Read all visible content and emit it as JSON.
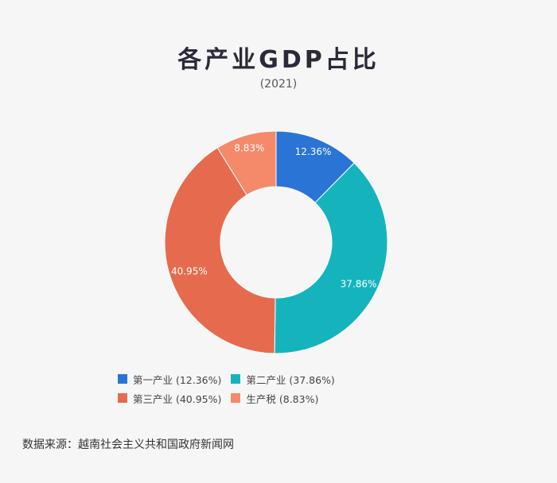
{
  "title": "各产业GDP占比",
  "subtitle": "(2021)",
  "source": "数据来源：越南社会主义共和国政府新闻网",
  "chart_data": {
    "type": "pie",
    "donut": true,
    "categories": [
      "第一产业",
      "第二产业",
      "第三产业",
      "生产税"
    ],
    "values": [
      12.36,
      37.86,
      40.95,
      8.83
    ],
    "data_labels": [
      "12.36%",
      "37.86%",
      "40.95%",
      "8.83%"
    ],
    "colors": [
      "#2a74d6",
      "#15b4bd",
      "#e66b4e",
      "#f48a6a"
    ],
    "legend": {
      "position": "bottom",
      "entries": [
        "第一产业 (12.36%)",
        "第二产业 (37.86%)",
        "第三产业 (40.95%)",
        "生产税 (8.83%)"
      ]
    }
  }
}
